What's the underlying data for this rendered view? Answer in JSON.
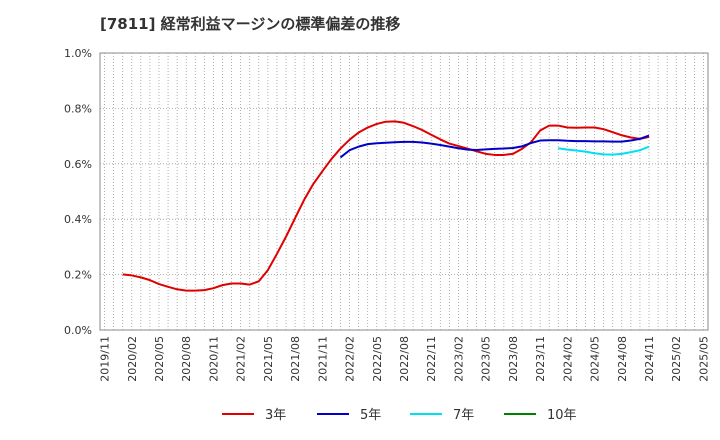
{
  "chart_data": {
    "type": "line",
    "title": "[7811]  経常利益マージンの標準偏差の推移",
    "xlabel": "",
    "ylabel": "",
    "ylim": [
      0,
      1.0
    ],
    "y_unit": "%",
    "y_ticks": [
      "0.0%",
      "0.2%",
      "0.4%",
      "0.6%",
      "0.8%",
      "1.0%"
    ],
    "y_tick_values": [
      0,
      0.2,
      0.4,
      0.6,
      0.8,
      1.0
    ],
    "x_start": "2019/11",
    "x_ticks": [
      "2019/11",
      "2020/02",
      "2020/05",
      "2020/08",
      "2020/11",
      "2021/02",
      "2021/05",
      "2021/08",
      "2021/11",
      "2022/02",
      "2022/05",
      "2022/08",
      "2022/11",
      "2023/02",
      "2023/05",
      "2023/08",
      "2023/11",
      "2024/02",
      "2024/05",
      "2024/08",
      "2024/11",
      "2025/02",
      "2025/05"
    ],
    "x_ticks_month_index": [
      0,
      3,
      6,
      9,
      12,
      15,
      18,
      21,
      24,
      27,
      30,
      33,
      36,
      39,
      42,
      45,
      48,
      51,
      54,
      57,
      60,
      63,
      66
    ],
    "grid": true,
    "legend_position": "bottom",
    "series": [
      {
        "name": "3年",
        "color": "#e00000",
        "points": [
          [
            2,
            0.201
          ],
          [
            3,
            0.197
          ],
          [
            4,
            0.19
          ],
          [
            5,
            0.18
          ],
          [
            6,
            0.166
          ],
          [
            7,
            0.156
          ],
          [
            8,
            0.147
          ],
          [
            9,
            0.142
          ],
          [
            10,
            0.142
          ],
          [
            11,
            0.144
          ],
          [
            12,
            0.151
          ],
          [
            13,
            0.162
          ],
          [
            14,
            0.168
          ],
          [
            15,
            0.168
          ],
          [
            16,
            0.164
          ],
          [
            17,
            0.176
          ],
          [
            18,
            0.216
          ],
          [
            19,
            0.275
          ],
          [
            20,
            0.337
          ],
          [
            21,
            0.404
          ],
          [
            22,
            0.47
          ],
          [
            23,
            0.527
          ],
          [
            24,
            0.573
          ],
          [
            25,
            0.617
          ],
          [
            26,
            0.655
          ],
          [
            27,
            0.687
          ],
          [
            28,
            0.713
          ],
          [
            29,
            0.731
          ],
          [
            30,
            0.744
          ],
          [
            31,
            0.752
          ],
          [
            32,
            0.753
          ],
          [
            33,
            0.748
          ],
          [
            34,
            0.736
          ],
          [
            35,
            0.722
          ],
          [
            36,
            0.705
          ],
          [
            37,
            0.688
          ],
          [
            38,
            0.673
          ],
          [
            39,
            0.664
          ],
          [
            40,
            0.655
          ],
          [
            41,
            0.645
          ],
          [
            42,
            0.636
          ],
          [
            43,
            0.632
          ],
          [
            44,
            0.632
          ],
          [
            45,
            0.636
          ],
          [
            46,
            0.654
          ],
          [
            47,
            0.678
          ],
          [
            48,
            0.72
          ],
          [
            49,
            0.738
          ],
          [
            50,
            0.738
          ],
          [
            51,
            0.731
          ],
          [
            52,
            0.73
          ],
          [
            53,
            0.731
          ],
          [
            54,
            0.731
          ],
          [
            55,
            0.725
          ],
          [
            56,
            0.714
          ],
          [
            57,
            0.703
          ],
          [
            58,
            0.695
          ],
          [
            59,
            0.69
          ],
          [
            60,
            0.697
          ]
        ]
      },
      {
        "name": "5年",
        "color": "#0000c8",
        "points": [
          [
            26,
            0.623
          ],
          [
            27,
            0.649
          ],
          [
            28,
            0.662
          ],
          [
            29,
            0.671
          ],
          [
            30,
            0.674
          ],
          [
            31,
            0.676
          ],
          [
            32,
            0.678
          ],
          [
            33,
            0.679
          ],
          [
            34,
            0.679
          ],
          [
            35,
            0.677
          ],
          [
            36,
            0.673
          ],
          [
            37,
            0.668
          ],
          [
            38,
            0.662
          ],
          [
            39,
            0.656
          ],
          [
            40,
            0.651
          ],
          [
            41,
            0.65
          ],
          [
            42,
            0.652
          ],
          [
            43,
            0.654
          ],
          [
            44,
            0.655
          ],
          [
            45,
            0.657
          ],
          [
            46,
            0.663
          ],
          [
            47,
            0.675
          ],
          [
            48,
            0.684
          ],
          [
            49,
            0.685
          ],
          [
            50,
            0.685
          ],
          [
            51,
            0.683
          ],
          [
            52,
            0.682
          ],
          [
            53,
            0.682
          ],
          [
            54,
            0.681
          ],
          [
            55,
            0.681
          ],
          [
            56,
            0.68
          ],
          [
            57,
            0.68
          ],
          [
            58,
            0.684
          ],
          [
            59,
            0.69
          ],
          [
            60,
            0.702
          ]
        ]
      },
      {
        "name": "7年",
        "color": "#00e0f0",
        "points": [
          [
            50,
            0.656
          ],
          [
            51,
            0.651
          ],
          [
            52,
            0.648
          ],
          [
            53,
            0.644
          ],
          [
            54,
            0.638
          ],
          [
            55,
            0.634
          ],
          [
            56,
            0.633
          ],
          [
            57,
            0.636
          ],
          [
            58,
            0.642
          ],
          [
            59,
            0.649
          ],
          [
            60,
            0.662
          ]
        ]
      },
      {
        "name": "10年",
        "color": "#008000",
        "points": []
      }
    ]
  }
}
